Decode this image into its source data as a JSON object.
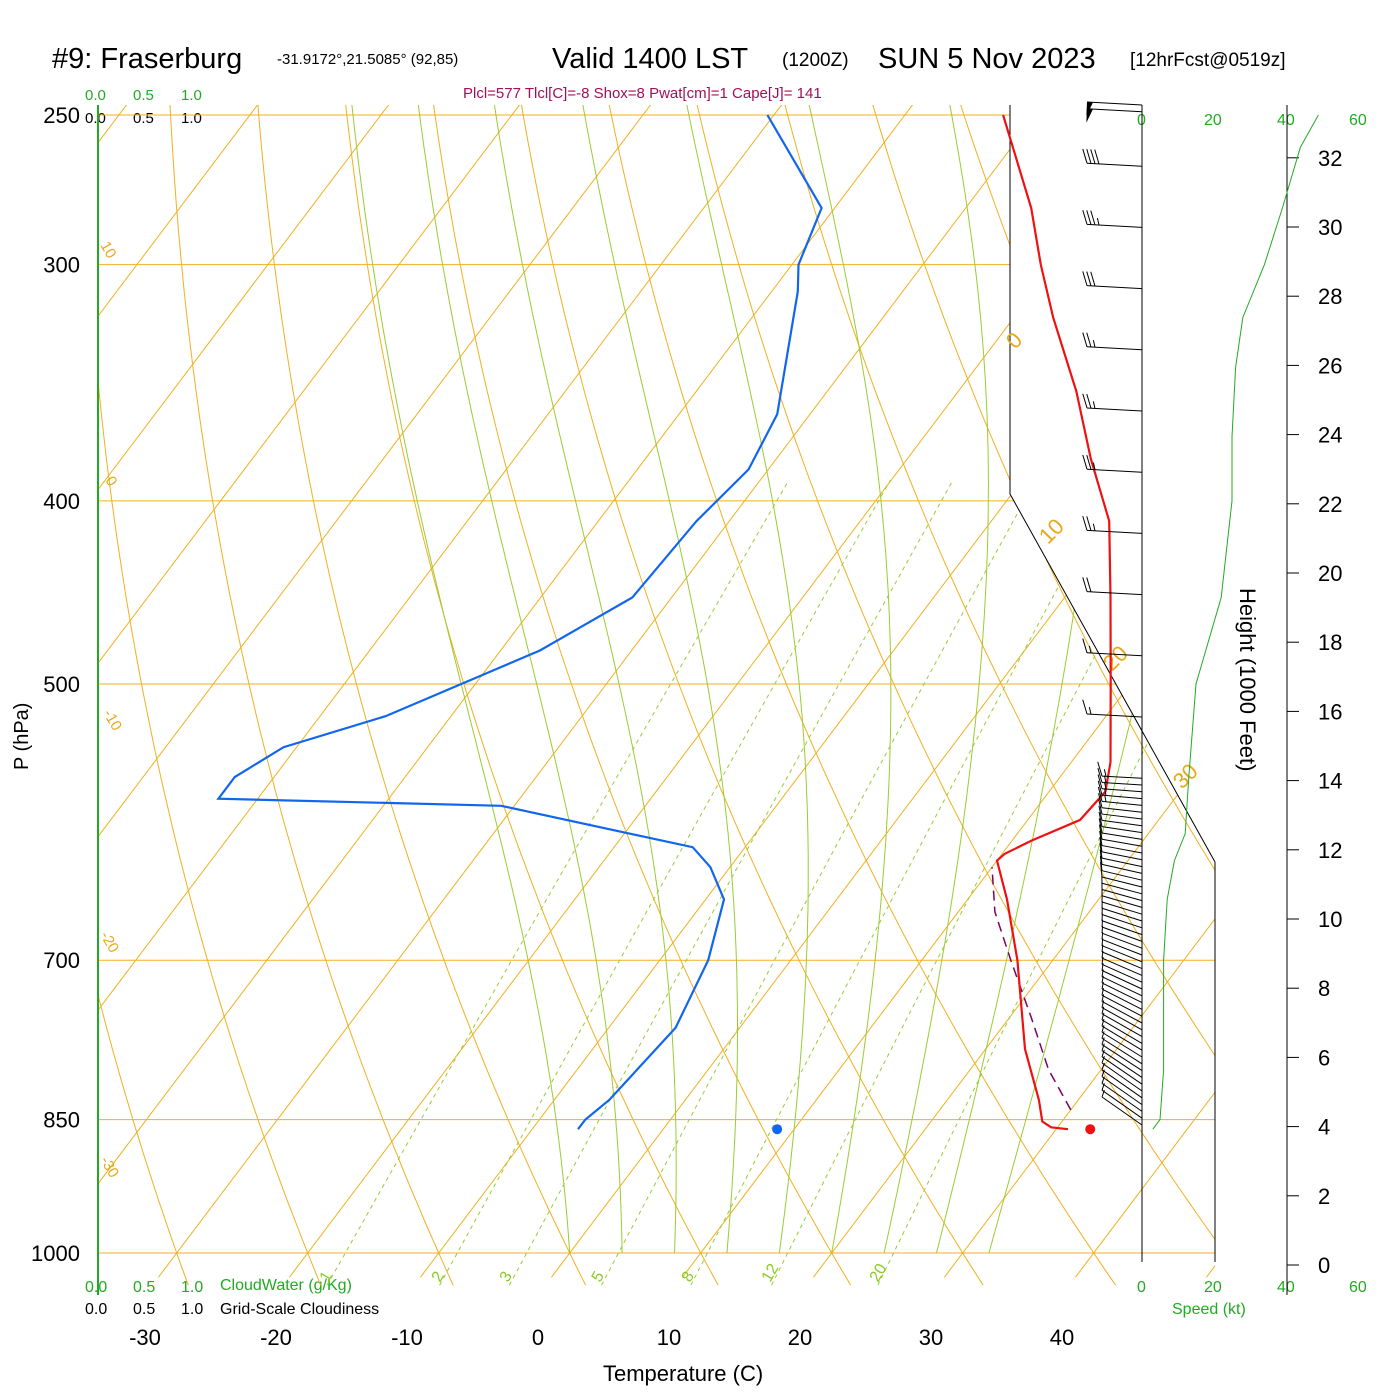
{
  "header": {
    "station": "#9: Fraserburg",
    "coords": "-31.9172°,21.5085° (92,85)",
    "valid": "Valid 1400 LST",
    "utc": "(1200Z)",
    "date": "SUN 5 Nov 2023",
    "forecast": "[12hrFcst@0519z]",
    "indices": "Plcl=577 Tlcl[C]=-8 Shox=8 Pwat[cm]=1 Cape[J]= 141"
  },
  "colors": {
    "temperature": "#ee1111",
    "dewpoint": "#1166ee",
    "parcel": "#800060",
    "isotherm": "#f0b020",
    "dry_adiabat": "#f0b020",
    "moist_adiabat": "#99cc33",
    "mixing_ratio": "#99cc33",
    "speed_profile": "#22aa22"
  },
  "scales": {
    "top_green": [
      "0.0",
      "0.5",
      "1.0"
    ],
    "top_black": [
      "0.0",
      "0.5",
      "1.0"
    ],
    "bottom_green": [
      "0.0",
      "0.5",
      "1.0"
    ],
    "bottom_black": [
      "0.0",
      "0.5",
      "1.0"
    ],
    "cloudwater_label": "CloudWater (g/Kg)",
    "cloudiness_label": "Grid-Scale Cloudiness",
    "speed_ticks": [
      "0",
      "20",
      "40",
      "60"
    ],
    "speed_label": "Speed (kt)"
  },
  "chart_data": {
    "type": "skew-t",
    "xlabel": "Temperature (C)",
    "ylabel": "P (hPa)",
    "y2label": "Height (1000 Feet)",
    "pressure_ticks": [
      250,
      300,
      400,
      500,
      700,
      850,
      1000
    ],
    "temp_ticks": [
      -30,
      -20,
      -10,
      0,
      10,
      20,
      30,
      40
    ],
    "height_ticks": [
      0,
      2,
      4,
      6,
      8,
      10,
      12,
      14,
      16,
      18,
      20,
      22,
      24,
      26,
      28,
      30,
      32
    ],
    "isotherm_labels": [
      "10",
      "0",
      "-10",
      "-20",
      "-30",
      "0",
      "10",
      "20",
      "30"
    ],
    "mixing_ratio_labels": [
      "1",
      "2",
      "3",
      "5",
      "8",
      "12",
      "20"
    ],
    "temperature": [
      {
        "p": 860,
        "t": 30.9
      },
      {
        "p": 858,
        "t": 29.5
      },
      {
        "p": 852,
        "t": 28.5
      },
      {
        "p": 830,
        "t": 27.0
      },
      {
        "p": 780,
        "t": 23.0
      },
      {
        "p": 700,
        "t": 17.3
      },
      {
        "p": 650,
        "t": 13.0
      },
      {
        "p": 620,
        "t": 10.0
      },
      {
        "p": 615,
        "t": 10.2
      },
      {
        "p": 605,
        "t": 11.5
      },
      {
        "p": 590,
        "t": 14.0
      },
      {
        "p": 570,
        "t": 14.3
      },
      {
        "p": 550,
        "t": 13.0
      },
      {
        "p": 500,
        "t": 8.5
      },
      {
        "p": 450,
        "t": 3.5
      },
      {
        "p": 410,
        "t": -1.0
      },
      {
        "p": 380,
        "t": -6.0
      },
      {
        "p": 350,
        "t": -11.0
      },
      {
        "p": 320,
        "t": -17.0
      },
      {
        "p": 300,
        "t": -21.0
      },
      {
        "p": 280,
        "t": -25.0
      },
      {
        "p": 250,
        "t": -32.5
      }
    ],
    "dewpoint": [
      {
        "p": 860,
        "t": -6.5
      },
      {
        "p": 850,
        "t": -6.5
      },
      {
        "p": 830,
        "t": -5.8
      },
      {
        "p": 760,
        "t": -4.9
      },
      {
        "p": 700,
        "t": -6.3
      },
      {
        "p": 650,
        "t": -8.6
      },
      {
        "p": 625,
        "t": -11.5
      },
      {
        "p": 610,
        "t": -14.0
      },
      {
        "p": 580,
        "t": -31.0
      },
      {
        "p": 575,
        "t": -53.0
      },
      {
        "p": 560,
        "t": -53.0
      },
      {
        "p": 540,
        "t": -51.0
      },
      {
        "p": 520,
        "t": -45.0
      },
      {
        "p": 480,
        "t": -37.0
      },
      {
        "p": 450,
        "t": -33.0
      },
      {
        "p": 410,
        "t": -32.5
      },
      {
        "p": 385,
        "t": -31.5
      },
      {
        "p": 360,
        "t": -32.5
      },
      {
        "p": 310,
        "t": -38.0
      },
      {
        "p": 300,
        "t": -39.5
      },
      {
        "p": 280,
        "t": -41.0
      },
      {
        "p": 250,
        "t": -50.5
      }
    ],
    "parcel": [
      {
        "p": 840,
        "t": 30.0
      },
      {
        "p": 800,
        "t": 26.0
      },
      {
        "p": 750,
        "t": 21.6
      },
      {
        "p": 700,
        "t": 16.8
      },
      {
        "p": 660,
        "t": 12.8
      },
      {
        "p": 625,
        "t": 10.0
      }
    ],
    "surface_temperature": 32.6,
    "surface_dewpoint": 8.7,
    "surface_pressure": 860,
    "wind_speed_kt": [
      {
        "p": 860,
        "s": 3
      },
      {
        "p": 850,
        "s": 5
      },
      {
        "p": 800,
        "s": 6
      },
      {
        "p": 700,
        "s": 6
      },
      {
        "p": 650,
        "s": 7
      },
      {
        "p": 620,
        "s": 9
      },
      {
        "p": 600,
        "s": 12
      },
      {
        "p": 560,
        "s": 13
      },
      {
        "p": 500,
        "s": 15
      },
      {
        "p": 450,
        "s": 22
      },
      {
        "p": 400,
        "s": 25
      },
      {
        "p": 370,
        "s": 25
      },
      {
        "p": 340,
        "s": 26
      },
      {
        "p": 320,
        "s": 28
      },
      {
        "p": 300,
        "s": 34
      },
      {
        "p": 280,
        "s": 39
      },
      {
        "p": 260,
        "s": 44
      },
      {
        "p": 250,
        "s": 49
      }
    ]
  }
}
